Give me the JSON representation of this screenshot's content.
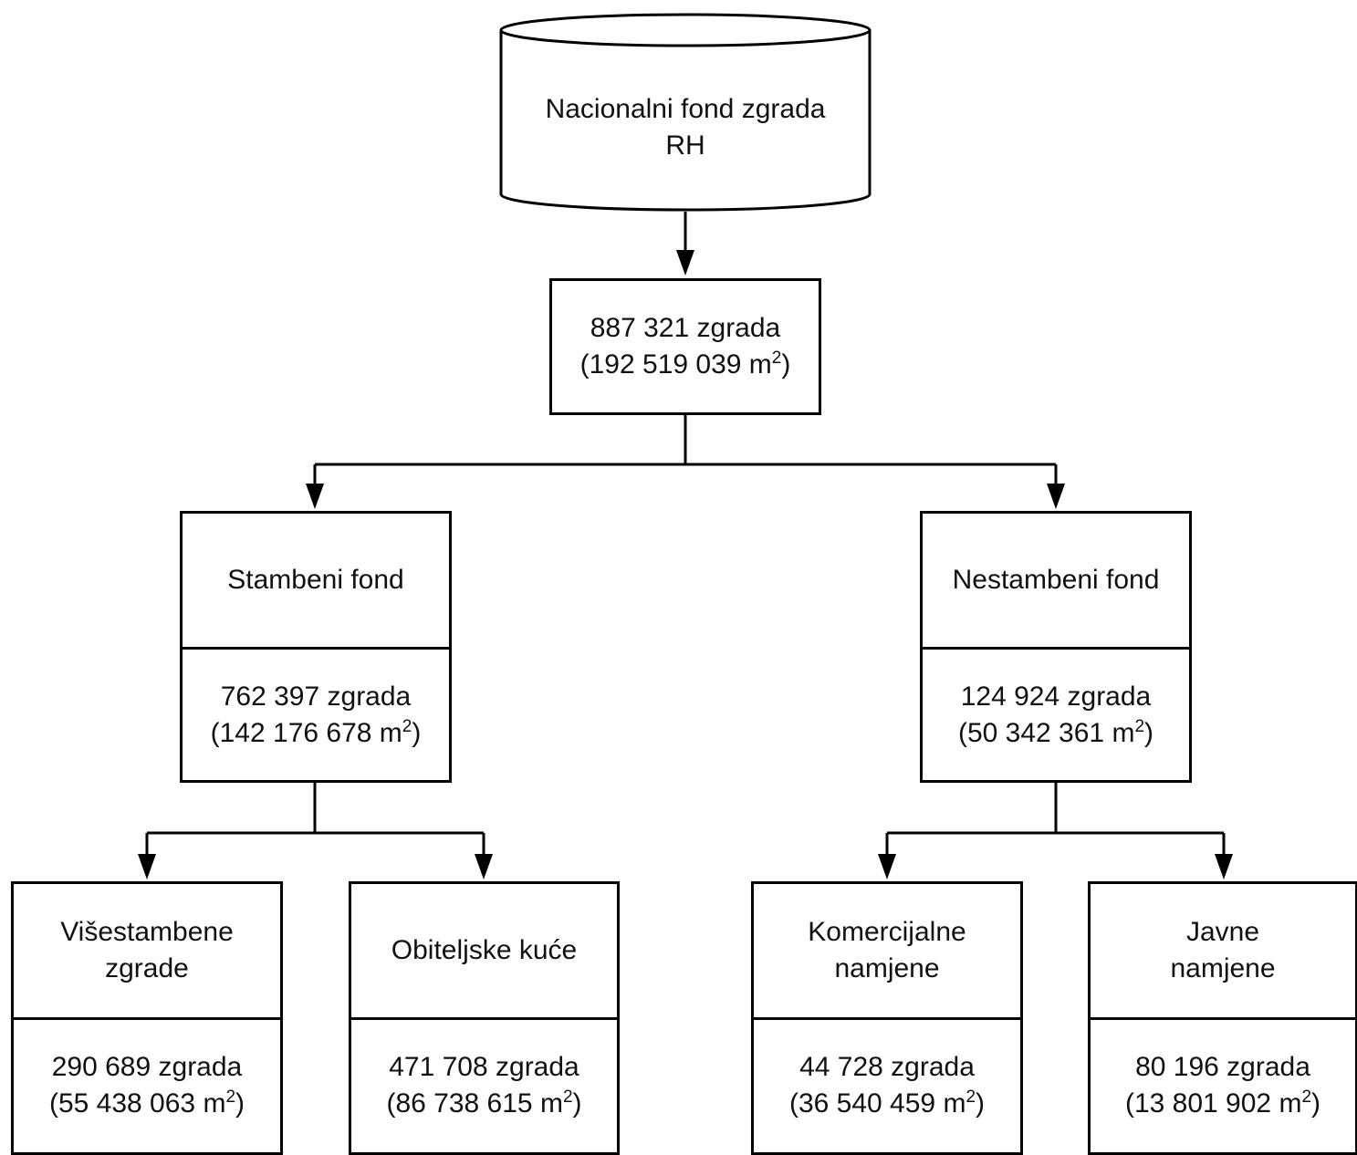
{
  "root": {
    "line1": "Nacionalni fond zgrada",
    "line2": "RH"
  },
  "total": {
    "count": "887 321 zgrada",
    "area_open": "(192 519 039 m",
    "sup": "2",
    "area_close": ")"
  },
  "residential": {
    "title": "Stambeni fond",
    "count": "762 397 zgrada",
    "area_open": "(142 176 678 m",
    "sup": "2",
    "area_close": ")"
  },
  "nonresidential": {
    "title": "Nestambeni fond",
    "count": "124 924 zgrada",
    "area_open": "(50 342 361 m",
    "sup": "2",
    "area_close": ")"
  },
  "multi_dwelling": {
    "title1": "Višestambene",
    "title2": "zgrade",
    "count": "290 689 zgrada",
    "area_open": "(55 438 063 m",
    "sup": "2",
    "area_close": ")"
  },
  "family_houses": {
    "title1": "Obiteljske kuće",
    "count": "471 708 zgrada",
    "area_open": "(86 738 615 m",
    "sup": "2",
    "area_close": ")"
  },
  "commercial": {
    "title1": "Komercijalne",
    "title2": "namjene",
    "count": "44 728 zgrada",
    "area_open": "(36 540 459 m",
    "sup": "2",
    "area_close": ")"
  },
  "public": {
    "title1": "Javne",
    "title2": "namjene",
    "count": "80 196 zgrada",
    "area_open": "(13 801 902 m",
    "sup": "2",
    "area_close": ")"
  }
}
